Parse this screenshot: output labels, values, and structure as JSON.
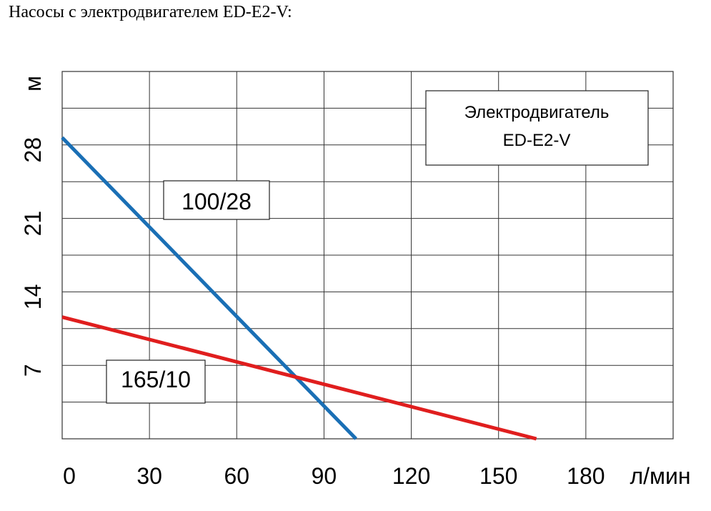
{
  "heading": "Насосы с электродвигателем ED-E2-V:",
  "chart_data": {
    "type": "line",
    "xlabel": "л/мин",
    "ylabel": "м",
    "x_ticks": [
      0,
      30,
      60,
      90,
      120,
      150,
      180
    ],
    "y_ticks": [
      7,
      14,
      21,
      28
    ],
    "xlim": [
      0,
      210
    ],
    "ylim": [
      0,
      35
    ],
    "grid": true,
    "legend_box": [
      "Электродвигатель",
      "ED-E2-V"
    ],
    "series": [
      {
        "name": "100/28",
        "color": "#1a6fb5",
        "x": [
          0,
          101
        ],
        "y": [
          28.7,
          0
        ]
      },
      {
        "name": "165/10",
        "color": "#e01e1e",
        "x": [
          0,
          163
        ],
        "y": [
          11.6,
          0
        ]
      }
    ]
  }
}
